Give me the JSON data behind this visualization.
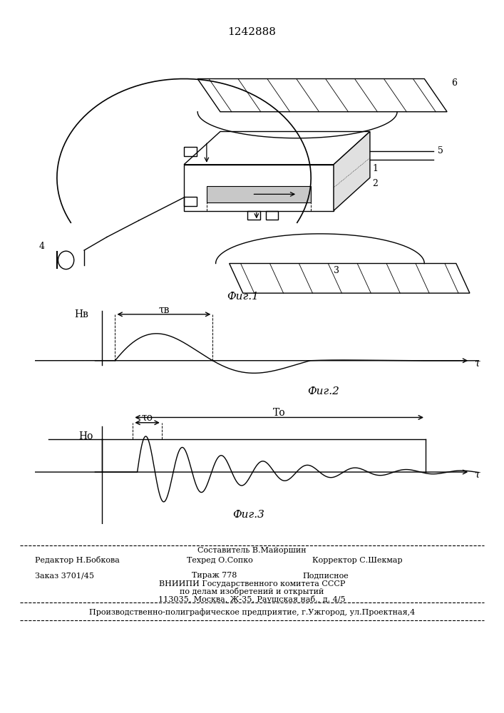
{
  "title": "1242888",
  "fig1_caption": "Фиг.1",
  "fig2_caption": "Фиг.2",
  "fig3_caption": "Фиг.3",
  "bg_color": "#ffffff",
  "line_color": "#000000",
  "label_1": "1",
  "label_2": "2",
  "label_3": "3",
  "label_4": "4",
  "label_5": "5",
  "label_6": "6",
  "hv_label": "Нв",
  "tau_v_label": "τв",
  "tau_label": "τ",
  "h0_label": "Но",
  "tau0_label": "τо",
  "T0_label": "То"
}
